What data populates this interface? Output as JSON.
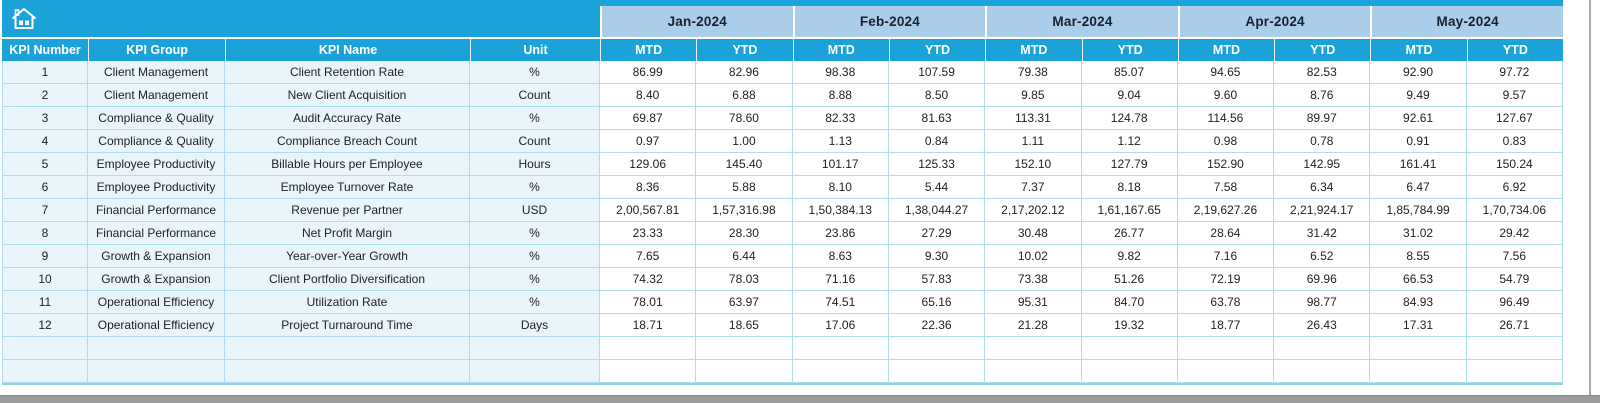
{
  "colors": {
    "accent_cyan": "#1ba3d9",
    "month_band_blue": "#aacdea",
    "row_tint_blue": "#e9f4fb",
    "grid_line": "#aedeed",
    "frame_gray": "#9b9b9b"
  },
  "nav": {
    "home_icon": "home"
  },
  "table": {
    "left_headers": [
      "KPI Number",
      "KPI Group",
      "KPI Name",
      "Unit"
    ],
    "months": [
      "Jan-2024",
      "Feb-2024",
      "Mar-2024",
      "Apr-2024",
      "May-2024"
    ],
    "sub_headers": [
      "MTD",
      "YTD"
    ],
    "rows": [
      {
        "number": "1",
        "group": "Client Management",
        "name": "Client Retention Rate",
        "unit": "%",
        "values": [
          "86.99",
          "82.96",
          "98.38",
          "107.59",
          "79.38",
          "85.07",
          "94.65",
          "82.53",
          "92.90",
          "97.72"
        ]
      },
      {
        "number": "2",
        "group": "Client Management",
        "name": "New Client Acquisition",
        "unit": "Count",
        "values": [
          "8.40",
          "6.88",
          "8.88",
          "8.50",
          "9.85",
          "9.04",
          "9.60",
          "8.76",
          "9.49",
          "9.57"
        ]
      },
      {
        "number": "3",
        "group": "Compliance & Quality",
        "name": "Audit Accuracy Rate",
        "unit": "%",
        "values": [
          "69.87",
          "78.60",
          "82.33",
          "81.63",
          "113.31",
          "124.78",
          "114.56",
          "89.97",
          "92.61",
          "127.67"
        ]
      },
      {
        "number": "4",
        "group": "Compliance & Quality",
        "name": "Compliance Breach Count",
        "unit": "Count",
        "values": [
          "0.97",
          "1.00",
          "1.13",
          "0.84",
          "1.11",
          "1.12",
          "0.98",
          "0.78",
          "0.91",
          "0.83"
        ]
      },
      {
        "number": "5",
        "group": "Employee Productivity",
        "name": "Billable Hours per Employee",
        "unit": "Hours",
        "values": [
          "129.06",
          "145.40",
          "101.17",
          "125.33",
          "152.10",
          "127.79",
          "152.90",
          "142.95",
          "161.41",
          "150.24"
        ]
      },
      {
        "number": "6",
        "group": "Employee Productivity",
        "name": "Employee Turnover Rate",
        "unit": "%",
        "values": [
          "8.36",
          "5.88",
          "8.10",
          "5.44",
          "7.37",
          "8.18",
          "7.58",
          "6.34",
          "6.47",
          "6.92"
        ]
      },
      {
        "number": "7",
        "group": "Financial Performance",
        "name": "Revenue per Partner",
        "unit": "USD",
        "values": [
          "2,00,567.81",
          "1,57,316.98",
          "1,50,384.13",
          "1,38,044.27",
          "2,17,202.12",
          "1,61,167.65",
          "2,19,627.26",
          "2,21,924.17",
          "1,85,784.99",
          "1,70,734.06"
        ]
      },
      {
        "number": "8",
        "group": "Financial Performance",
        "name": "Net Profit Margin",
        "unit": "%",
        "values": [
          "23.33",
          "28.30",
          "23.86",
          "27.29",
          "30.48",
          "26.77",
          "28.64",
          "31.42",
          "31.02",
          "29.42"
        ]
      },
      {
        "number": "9",
        "group": "Growth & Expansion",
        "name": "Year-over-Year Growth",
        "unit": "%",
        "values": [
          "7.65",
          "6.44",
          "8.63",
          "9.30",
          "10.02",
          "9.82",
          "7.16",
          "6.52",
          "8.55",
          "7.56"
        ]
      },
      {
        "number": "10",
        "group": "Growth & Expansion",
        "name": "Client Portfolio Diversification",
        "unit": "%",
        "values": [
          "74.32",
          "78.03",
          "71.16",
          "57.83",
          "73.38",
          "51.26",
          "72.19",
          "69.96",
          "66.53",
          "54.79"
        ]
      },
      {
        "number": "11",
        "group": "Operational Efficiency",
        "name": "Utilization Rate",
        "unit": "%",
        "values": [
          "78.01",
          "63.97",
          "74.51",
          "65.16",
          "95.31",
          "84.70",
          "63.78",
          "98.77",
          "84.93",
          "96.49"
        ]
      },
      {
        "number": "12",
        "group": "Operational Efficiency",
        "name": "Project Turnaround Time",
        "unit": "Days",
        "values": [
          "18.71",
          "18.65",
          "17.06",
          "22.36",
          "21.28",
          "19.32",
          "18.77",
          "26.43",
          "17.31",
          "26.71"
        ]
      }
    ],
    "empty_rows": 2
  }
}
